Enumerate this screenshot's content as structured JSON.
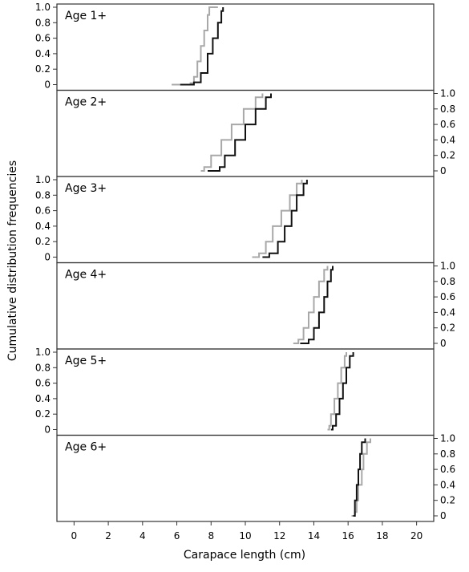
{
  "chart_data": {
    "type": "step-line",
    "xlabel": "Carapace length (cm)",
    "ylabel": "Cumulative distribution frequencies",
    "xlim": [
      -1,
      21
    ],
    "x_ticks": [
      0,
      2,
      4,
      6,
      8,
      10,
      12,
      14,
      16,
      18,
      20
    ],
    "y_ticks": [
      0,
      0.2,
      0.4,
      0.6,
      0.8,
      1.0
    ],
    "y_tick_labels": [
      "0",
      "0.2",
      "0.4",
      "0.6",
      "0.8",
      "1.0"
    ],
    "ylim": [
      0,
      1
    ],
    "series_colors": {
      "grey": "#a8a8a8",
      "black": "#111111"
    },
    "panels": [
      {
        "label": "Age 1+",
        "y_axis_side": "left",
        "grey": [
          [
            5.7,
            0
          ],
          [
            6.8,
            0.02
          ],
          [
            7.0,
            0.1
          ],
          [
            7.2,
            0.3
          ],
          [
            7.4,
            0.5
          ],
          [
            7.6,
            0.7
          ],
          [
            7.8,
            0.9
          ],
          [
            7.9,
            1.0
          ],
          [
            8.4,
            1.0
          ]
        ],
        "black": [
          [
            6.2,
            0
          ],
          [
            7.0,
            0.03
          ],
          [
            7.4,
            0.15
          ],
          [
            7.8,
            0.4
          ],
          [
            8.1,
            0.6
          ],
          [
            8.4,
            0.8
          ],
          [
            8.6,
            0.95
          ],
          [
            8.7,
            1.0
          ]
        ]
      },
      {
        "label": "Age 2+",
        "y_axis_side": "right",
        "grey": [
          [
            7.4,
            0
          ],
          [
            7.6,
            0.05
          ],
          [
            8.0,
            0.2
          ],
          [
            8.6,
            0.4
          ],
          [
            9.2,
            0.6
          ],
          [
            9.9,
            0.8
          ],
          [
            10.6,
            0.95
          ],
          [
            11.0,
            1.0
          ]
        ],
        "black": [
          [
            7.8,
            0
          ],
          [
            8.5,
            0.05
          ],
          [
            8.8,
            0.2
          ],
          [
            9.4,
            0.4
          ],
          [
            10.0,
            0.6
          ],
          [
            10.6,
            0.8
          ],
          [
            11.2,
            0.95
          ],
          [
            11.5,
            1.0
          ]
        ]
      },
      {
        "label": "Age 3+",
        "y_axis_side": "left",
        "grey": [
          [
            10.4,
            0
          ],
          [
            10.8,
            0.05
          ],
          [
            11.2,
            0.2
          ],
          [
            11.6,
            0.4
          ],
          [
            12.1,
            0.6
          ],
          [
            12.6,
            0.8
          ],
          [
            13.0,
            0.95
          ],
          [
            13.3,
            1.0
          ]
        ],
        "black": [
          [
            11.0,
            0
          ],
          [
            11.4,
            0.05
          ],
          [
            11.9,
            0.2
          ],
          [
            12.3,
            0.4
          ],
          [
            12.7,
            0.6
          ],
          [
            13.0,
            0.8
          ],
          [
            13.4,
            0.95
          ],
          [
            13.6,
            1.0
          ]
        ]
      },
      {
        "label": "Age 4+",
        "y_axis_side": "right",
        "grey": [
          [
            12.8,
            0
          ],
          [
            13.1,
            0.05
          ],
          [
            13.4,
            0.2
          ],
          [
            13.7,
            0.4
          ],
          [
            14.0,
            0.6
          ],
          [
            14.3,
            0.8
          ],
          [
            14.6,
            0.95
          ],
          [
            14.8,
            1.0
          ]
        ],
        "black": [
          [
            13.2,
            0
          ],
          [
            13.7,
            0.05
          ],
          [
            14.0,
            0.2
          ],
          [
            14.3,
            0.4
          ],
          [
            14.6,
            0.6
          ],
          [
            14.8,
            0.8
          ],
          [
            15.0,
            0.95
          ],
          [
            15.1,
            1.0
          ]
        ]
      },
      {
        "label": "Age 5+",
        "y_axis_side": "left",
        "grey": [
          [
            14.8,
            0
          ],
          [
            14.9,
            0.05
          ],
          [
            15.0,
            0.2
          ],
          [
            15.2,
            0.4
          ],
          [
            15.4,
            0.6
          ],
          [
            15.6,
            0.8
          ],
          [
            15.8,
            0.95
          ],
          [
            15.9,
            1.0
          ]
        ],
        "black": [
          [
            15.0,
            0
          ],
          [
            15.1,
            0.05
          ],
          [
            15.3,
            0.2
          ],
          [
            15.5,
            0.4
          ],
          [
            15.7,
            0.6
          ],
          [
            15.9,
            0.8
          ],
          [
            16.1,
            0.95
          ],
          [
            16.3,
            1.0
          ]
        ]
      },
      {
        "label": "Age 6+",
        "y_axis_side": "right",
        "grey": [
          [
            16.2,
            0
          ],
          [
            16.4,
            0.05
          ],
          [
            16.5,
            0.2
          ],
          [
            16.6,
            0.4
          ],
          [
            16.8,
            0.6
          ],
          [
            16.9,
            0.8
          ],
          [
            17.1,
            0.95
          ],
          [
            17.3,
            1.0
          ]
        ],
        "black": [
          [
            16.3,
            0
          ],
          [
            16.4,
            0.05
          ],
          [
            16.4,
            0.2
          ],
          [
            16.5,
            0.4
          ],
          [
            16.6,
            0.6
          ],
          [
            16.7,
            0.8
          ],
          [
            16.8,
            0.95
          ],
          [
            17.0,
            1.0
          ]
        ]
      }
    ]
  }
}
